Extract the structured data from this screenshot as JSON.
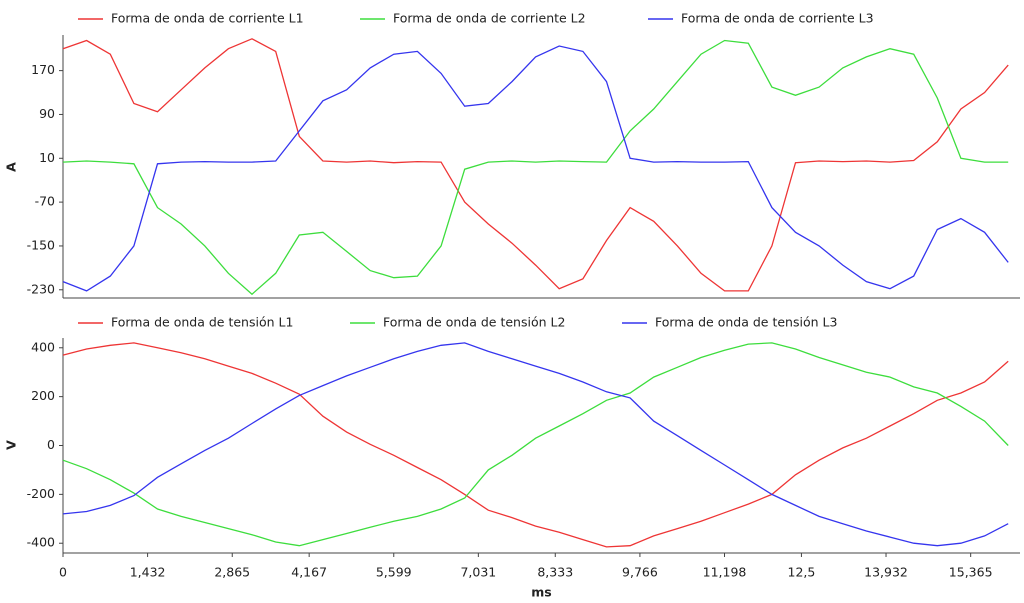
{
  "chart_data": [
    {
      "type": "line",
      "ylabel": "A",
      "x": [
        0,
        0.4,
        0.8,
        1.2,
        1.6,
        2.0,
        2.4,
        2.8,
        3.2,
        3.6,
        4.0,
        4.4,
        4.8,
        5.2,
        5.6,
        6.0,
        6.4,
        6.8,
        7.2,
        7.6,
        8.0,
        8.4,
        8.8,
        9.2,
        9.6,
        10.0,
        10.4,
        10.8,
        11.2,
        11.6,
        12.0,
        12.4,
        12.8,
        13.2,
        13.6,
        14.0,
        14.4,
        14.8,
        15.2,
        15.6,
        16.0
      ],
      "series": [
        {
          "name": "Forma de onda de corriente L1",
          "color": "#ee3535",
          "values": [
            210,
            225,
            200,
            110,
            95,
            135,
            175,
            210,
            228,
            205,
            50,
            5,
            3,
            5,
            2,
            4,
            3,
            -70,
            -110,
            -145,
            -185,
            -228,
            -210,
            -140,
            -80,
            -105,
            -150,
            -200,
            -232,
            -232,
            -150,
            2,
            5,
            4,
            5,
            3,
            6,
            40,
            100,
            130,
            180
          ]
        },
        {
          "name": "Forma de onda de corriente L2",
          "color": "#3ddd3d",
          "values": [
            3,
            5,
            3,
            0,
            -80,
            -110,
            -150,
            -200,
            -238,
            -200,
            -130,
            -125,
            -160,
            -195,
            -208,
            -205,
            -150,
            -10,
            3,
            5,
            3,
            5,
            4,
            3,
            60,
            100,
            150,
            200,
            225,
            220,
            140,
            125,
            140,
            175,
            195,
            210,
            200,
            120,
            10,
            3,
            3
          ]
        },
        {
          "name": "Forma de onda de corriente L3",
          "color": "#3535ee",
          "values": [
            -215,
            -232,
            -205,
            -150,
            0,
            3,
            4,
            3,
            3,
            5,
            60,
            115,
            135,
            175,
            200,
            205,
            165,
            105,
            110,
            150,
            195,
            215,
            205,
            150,
            10,
            3,
            4,
            3,
            3,
            4,
            -80,
            -125,
            -150,
            -185,
            -215,
            -228,
            -205,
            -120,
            -100,
            -125,
            -180
          ]
        }
      ],
      "xlim": [
        0,
        16.2
      ],
      "ylim": [
        -245,
        235
      ],
      "yticks": [
        170,
        90,
        10,
        -70,
        -150,
        -230
      ]
    },
    {
      "type": "line",
      "ylabel": "V",
      "xlabel": "ms",
      "x": [
        0,
        0.4,
        0.8,
        1.2,
        1.6,
        2.0,
        2.4,
        2.8,
        3.2,
        3.6,
        4.0,
        4.4,
        4.8,
        5.2,
        5.6,
        6.0,
        6.4,
        6.8,
        7.2,
        7.6,
        8.0,
        8.4,
        8.8,
        9.2,
        9.6,
        10.0,
        10.4,
        10.8,
        11.2,
        11.6,
        12.0,
        12.4,
        12.8,
        13.2,
        13.6,
        14.0,
        14.4,
        14.8,
        15.2,
        15.6,
        16.0
      ],
      "series": [
        {
          "name": "Forma de onda de tensión L1",
          "color": "#ee3535",
          "values": [
            370,
            395,
            410,
            420,
            400,
            380,
            355,
            325,
            295,
            255,
            210,
            120,
            55,
            5,
            -40,
            -90,
            -140,
            -200,
            -265,
            -295,
            -330,
            -355,
            -385,
            -415,
            -410,
            -370,
            -340,
            -310,
            -275,
            -240,
            -200,
            -120,
            -60,
            -10,
            30,
            80,
            130,
            185,
            215,
            260,
            345
          ]
        },
        {
          "name": "Forma de onda de tensión L2",
          "color": "#3ddd3d",
          "values": [
            -60,
            -95,
            -140,
            -195,
            -260,
            -290,
            -315,
            -340,
            -365,
            -395,
            -410,
            -385,
            -360,
            -335,
            -310,
            -290,
            -260,
            -215,
            -100,
            -40,
            30,
            80,
            130,
            185,
            215,
            280,
            320,
            360,
            390,
            415,
            420,
            395,
            360,
            330,
            300,
            280,
            240,
            215,
            160,
            100,
            0
          ]
        },
        {
          "name": "Forma de onda de tensión L3",
          "color": "#3535ee",
          "values": [
            -280,
            -270,
            -245,
            -205,
            -130,
            -75,
            -20,
            30,
            90,
            150,
            205,
            245,
            285,
            320,
            355,
            385,
            410,
            420,
            385,
            355,
            325,
            295,
            260,
            220,
            195,
            100,
            40,
            -20,
            -80,
            -140,
            -200,
            -245,
            -290,
            -320,
            -350,
            -375,
            -400,
            -410,
            -400,
            -370,
            -320
          ]
        }
      ],
      "xlim": [
        0,
        16.2
      ],
      "ylim": [
        -440,
        440
      ],
      "yticks": [
        400,
        200,
        0,
        -200,
        -400
      ],
      "xticks": [
        0,
        {
          "value": 1.432,
          "label": "1,432"
        },
        {
          "value": 2.865,
          "label": "2,865"
        },
        {
          "value": 4.167,
          "label": "4,167"
        },
        {
          "value": 5.599,
          "label": "5,599"
        },
        {
          "value": 7.031,
          "label": "7,031"
        },
        {
          "value": 8.333,
          "label": "8,333"
        },
        {
          "value": 9.766,
          "label": "9,766"
        },
        {
          "value": 11.198,
          "label": "11,198"
        },
        {
          "value": 12.5,
          "label": "12,5"
        },
        {
          "value": 13.932,
          "label": "13,932"
        },
        {
          "value": 15.365,
          "label": "15,365"
        }
      ]
    }
  ]
}
